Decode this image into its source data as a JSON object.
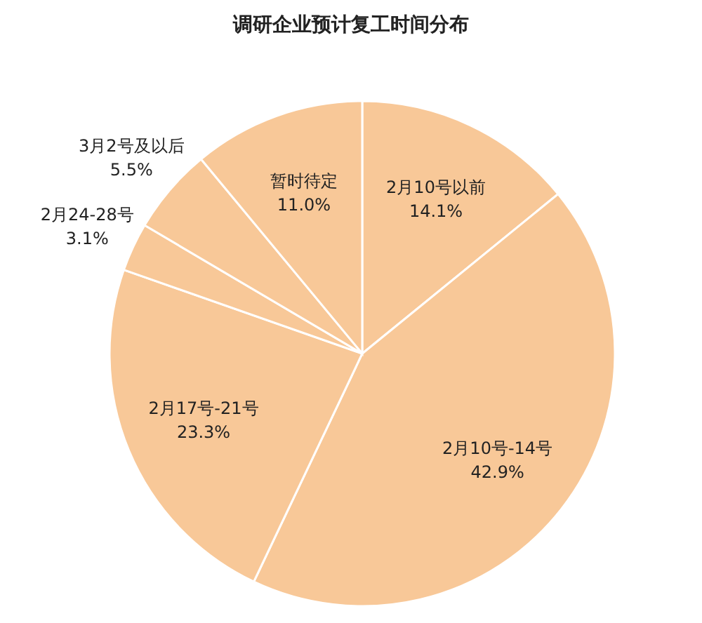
{
  "chart_data": {
    "type": "pie",
    "title": "调研企业预计复工时间分布",
    "categories": [
      "2月10号以前",
      "2月10号-14号",
      "2月17号-21号",
      "2月24-28号",
      "3月2号及以后",
      "暂时待定"
    ],
    "values": [
      14.1,
      42.9,
      23.3,
      3.1,
      5.5,
      11.0
    ],
    "colors": [
      "#f8c898",
      "#f8c898",
      "#f8c898",
      "#f8c898",
      "#f8c898",
      "#f8c898"
    ],
    "value_labels": [
      "14.1%",
      "42.9%",
      "23.3%",
      "3.1%",
      "5.5%",
      "11.0%"
    ]
  }
}
